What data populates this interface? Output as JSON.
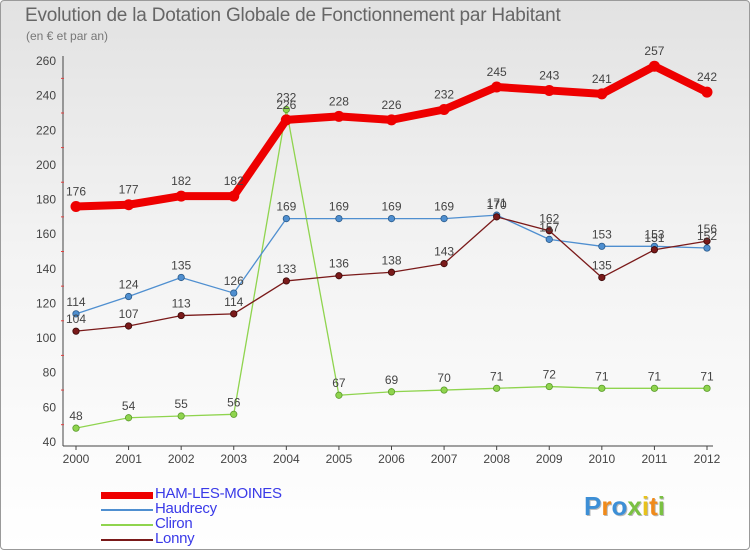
{
  "chart_data": {
    "type": "line",
    "title": "Evolution de la Dotation Globale de Fonctionnement par Habitant",
    "subtitle": "(en € et par an)",
    "xlabel": "",
    "ylabel": "",
    "x": [
      "2000",
      "2001",
      "2002",
      "2003",
      "2004",
      "2005",
      "2006",
      "2007",
      "2008",
      "2009",
      "2010",
      "2011",
      "2012"
    ],
    "ylim": [
      40,
      260
    ],
    "yticks": [
      "40",
      "60",
      "80",
      "100",
      "120",
      "140",
      "160",
      "180",
      "200",
      "220",
      "240",
      "260"
    ],
    "grid": false,
    "legend_position": "bottom-left",
    "series": [
      {
        "name": "HAM-LES-MOINES",
        "color": "#ee0000",
        "values": [
          176,
          177,
          182,
          182,
          226,
          228,
          226,
          232,
          245,
          243,
          241,
          257,
          242
        ],
        "labels": [
          "176",
          "177",
          "182",
          "182",
          "226",
          "228",
          "226",
          "232",
          "245",
          "243",
          "241",
          "257",
          "242"
        ]
      },
      {
        "name": "Haudrecy",
        "color": "#4f8fd0",
        "values": [
          114,
          124,
          135,
          126,
          169,
          169,
          169,
          169,
          171,
          157,
          153,
          153,
          152
        ],
        "labels": [
          "114",
          "124",
          "135",
          "126",
          "169",
          "169",
          "169",
          "169",
          "171",
          "157",
          "153",
          "153",
          "152"
        ]
      },
      {
        "name": "Cliron",
        "color": "#8fd44e",
        "values": [
          48,
          54,
          55,
          56,
          232,
          67,
          69,
          70,
          71,
          72,
          71,
          71,
          71
        ],
        "labels": [
          "48",
          "54",
          "55",
          "56",
          "232",
          "67",
          "69",
          "70",
          "71",
          "72",
          "71",
          "71",
          "71"
        ]
      },
      {
        "name": "Lonny",
        "color": "#7a1a1a",
        "values": [
          104,
          107,
          113,
          114,
          133,
          136,
          138,
          143,
          170,
          162,
          135,
          151,
          156
        ],
        "labels": [
          "104",
          "107",
          "113",
          "114",
          "133",
          "136",
          "138",
          "143",
          "170",
          "162",
          "135",
          "151",
          "156"
        ]
      }
    ]
  },
  "logo": {
    "letters": [
      {
        "char": "P",
        "color": "#3d8fd6"
      },
      {
        "char": "r",
        "color": "#f08a1a"
      },
      {
        "char": "o",
        "color": "#3d8fd6"
      },
      {
        "char": "x",
        "color": "#7ac142"
      },
      {
        "char": "i",
        "color": "#e8c21a"
      },
      {
        "char": "t",
        "color": "#f08a1a"
      },
      {
        "char": "i",
        "color": "#7ac142"
      }
    ]
  }
}
